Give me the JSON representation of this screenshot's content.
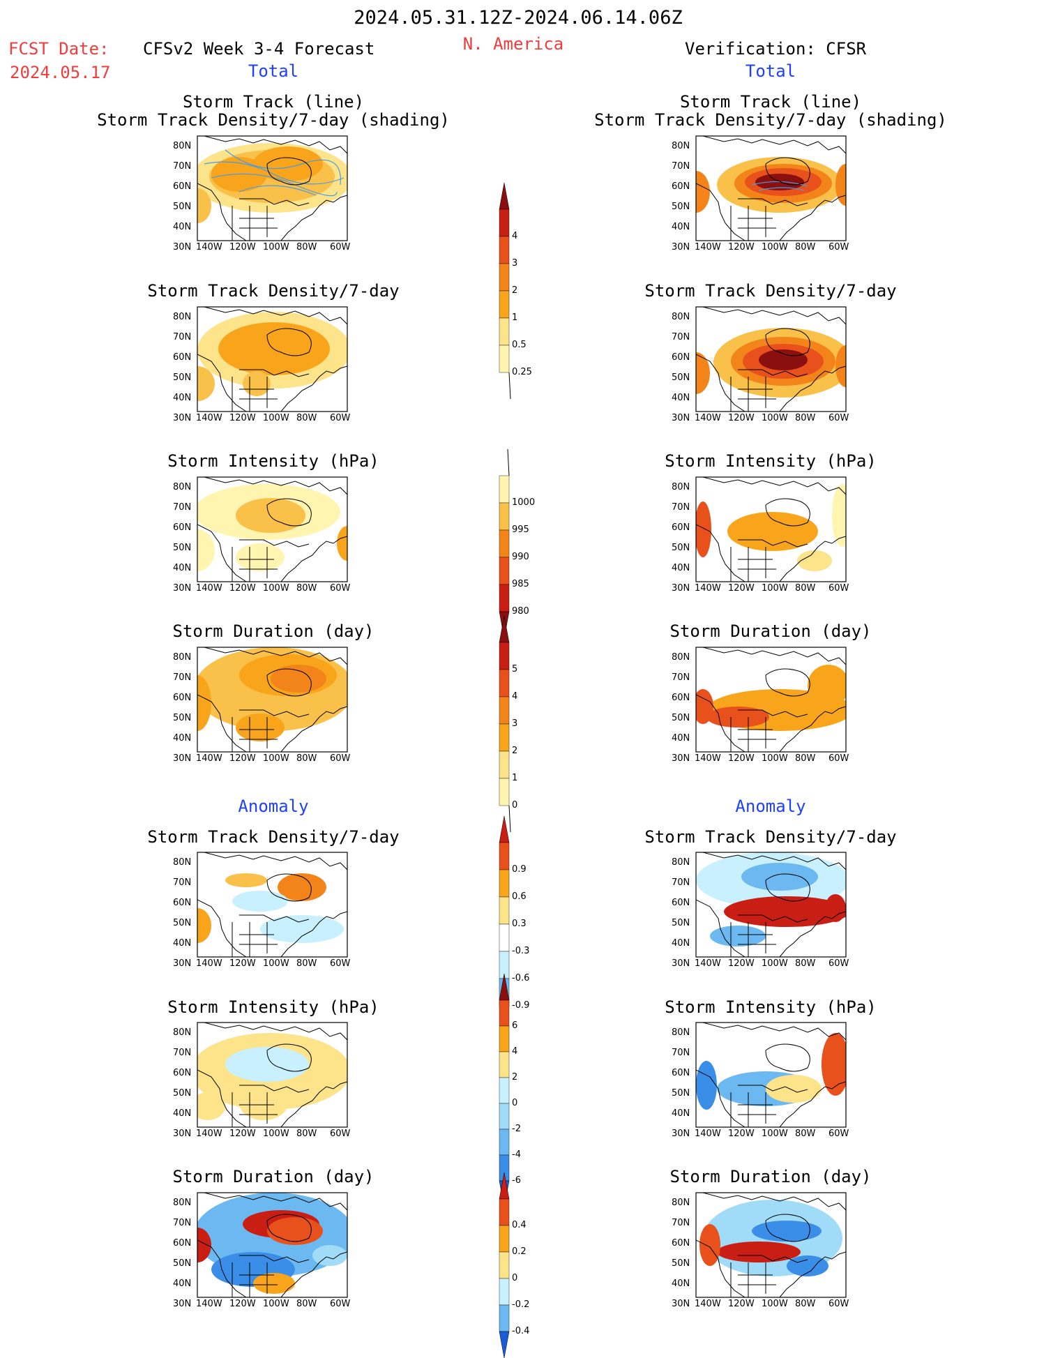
{
  "header": {
    "date_range": "2024.05.31.12Z-2024.06.14.06Z",
    "fcst_label": "FCST Date:",
    "fcst_date": "2024.05.17",
    "left_title": "CFSv2 Week 3-4 Forecast",
    "region": "N. America",
    "right_title": "Verification: CFSR"
  },
  "sections": {
    "total": "Total",
    "anomaly": "Anomaly"
  },
  "panel_titles": {
    "track_line": "Storm Track (line)",
    "track_shading": "Storm Track Density/7-day (shading)",
    "density": "Storm Track Density/7-day",
    "intensity": "Storm Intensity (hPa)",
    "duration": "Storm Duration (day)"
  },
  "axes": {
    "lat_labels": [
      "80N",
      "70N",
      "60N",
      "50N",
      "40N",
      "30N"
    ],
    "lon_labels": [
      "140W",
      "120W",
      "100W",
      "80W",
      "60W"
    ]
  },
  "colorbars": {
    "density_total": [
      "4",
      "3",
      "2",
      "1",
      "0.5",
      "0.25"
    ],
    "intensity_total": [
      "1000",
      "995",
      "990",
      "985",
      "980"
    ],
    "duration_total": [
      "5",
      "4",
      "3",
      "2",
      "1",
      "0"
    ],
    "density_anom": [
      "0.9",
      "0.6",
      "0.3",
      "-0.3",
      "-0.6",
      "-0.9"
    ],
    "intensity_anom": [
      "6",
      "4",
      "2",
      "0",
      "-2",
      "-4",
      "-6"
    ],
    "duration_anom": [
      "0.4",
      "0.2",
      "0",
      "-0.2",
      "-0.4"
    ]
  },
  "colors": {
    "warm": [
      "#fff5b0",
      "#fde38a",
      "#f9c14a",
      "#f9a51c",
      "#f2841a",
      "#e8501c",
      "#c81e14",
      "#8a0f0f"
    ],
    "cool": [
      "#c8f0ff",
      "#a0dcf8",
      "#6cb8f0",
      "#3a8ee8",
      "#1a5cd8"
    ],
    "track_line": "#4a9ce0",
    "header_red": "#f03c3c",
    "section_blue": "#2040ff"
  }
}
